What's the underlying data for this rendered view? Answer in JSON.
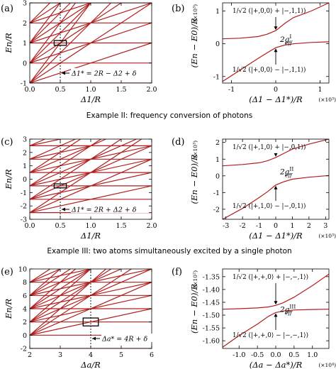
{
  "example_titles": [
    "Example II: frequency conversion of photons",
    "Example III: two atoms simultaneously excited by a single photon"
  ],
  "chart_data": [
    {
      "panel": "(a)",
      "type": "line",
      "xlabel": "Δ1/R",
      "ylabel": "En/R",
      "xlim": [
        0,
        2
      ],
      "ylim": [
        -1,
        3
      ],
      "xticks": [
        "0.0",
        "0.5",
        "1.0",
        "1.5",
        "2.0"
      ],
      "yticks": [
        "-1",
        "0",
        "1",
        "2",
        "3"
      ],
      "annotation": "Δ1* = 2R − Δ2 + δ",
      "marker_x": 0.5,
      "box": {
        "x": [
          0.4,
          0.6
        ],
        "y": [
          0.88,
          1.12
        ]
      },
      "series": [
        {
          "x": [
            0,
            2
          ],
          "y": [
            -1,
            -1
          ]
        },
        {
          "x": [
            0,
            2
          ],
          "y": [
            0,
            0
          ]
        },
        {
          "x": [
            0,
            2
          ],
          "y": [
            1,
            1
          ]
        },
        {
          "x": [
            0,
            2
          ],
          "y": [
            2,
            2
          ]
        },
        {
          "x": [
            0,
            2
          ],
          "y": [
            3,
            3
          ]
        },
        {
          "x": [
            0,
            2
          ],
          "y": [
            -1,
            1
          ]
        },
        {
          "x": [
            0,
            2
          ],
          "y": [
            0,
            2
          ]
        },
        {
          "x": [
            0,
            2
          ],
          "y": [
            1,
            3
          ]
        },
        {
          "x": [
            0,
            1
          ],
          "y": [
            2,
            3
          ]
        },
        {
          "x": [
            0,
            2
          ],
          "y": [
            -1,
            3
          ]
        },
        {
          "x": [
            0,
            1.5
          ],
          "y": [
            0,
            3
          ]
        },
        {
          "x": [
            0,
            1
          ],
          "y": [
            1,
            3
          ]
        },
        {
          "x": [
            0,
            0.5
          ],
          "y": [
            2,
            3
          ]
        },
        {
          "x": [
            0,
            1.333
          ],
          "y": [
            -1,
            3
          ]
        },
        {
          "x": [
            0,
            1
          ],
          "y": [
            0,
            3
          ]
        },
        {
          "x": [
            0,
            0.667
          ],
          "y": [
            1,
            3
          ]
        },
        {
          "x": [
            0,
            0.333
          ],
          "y": [
            2,
            3
          ]
        },
        {
          "x": [
            0,
            1
          ],
          "y": [
            -1,
            3
          ]
        },
        {
          "x": [
            0,
            0.75
          ],
          "y": [
            0,
            3
          ]
        },
        {
          "x": [
            0,
            0.5
          ],
          "y": [
            1,
            3
          ]
        }
      ]
    },
    {
      "panel": "(b)",
      "type": "line",
      "xlabel": "(Δ1 − Δ1*)/R",
      "x_unit": "(×10³)",
      "ylabel": "(En − E0)/R",
      "y_unit": "(×10³)",
      "xlim": [
        -1.2,
        1.2
      ],
      "ylim": [
        -1.2,
        1.25
      ],
      "xticks": [
        "-1",
        "0",
        "1"
      ],
      "yticks": [
        "-1",
        "0",
        "1"
      ],
      "upper_label": "1/√2 (|+,0,0⟩ + |−,1,1⟩)",
      "lower_label": "1/√2 (|+,0,0⟩ − |−,1,1⟩)",
      "gap_label": "2g",
      "gap_sup": "I",
      "gap_sub": "eff",
      "series": [
        {
          "x": [
            -1.2,
            -0.8,
            -0.4,
            -0.2,
            0,
            0.2,
            0.4,
            0.8,
            1.2
          ],
          "y": [
            0.15,
            0.17,
            0.22,
            0.29,
            0.4,
            0.62,
            0.8,
            1.0,
            1.25
          ]
        },
        {
          "x": [
            -1.2,
            -0.8,
            -0.4,
            -0.2,
            0,
            0.2,
            0.4,
            0.8,
            1.2
          ],
          "y": [
            -1.15,
            -0.8,
            -0.45,
            -0.28,
            -0.12,
            -0.04,
            0.0,
            0.04,
            0.06
          ]
        }
      ]
    },
    {
      "panel": "(c)",
      "type": "line",
      "xlabel": "Δ1/R",
      "ylabel": "En/R",
      "xlim": [
        0,
        2
      ],
      "ylim": [
        -3,
        3
      ],
      "xticks": [
        "0.0",
        "0.5",
        "1.0",
        "1.5",
        "2.0"
      ],
      "yticks": [
        "-3",
        "-2",
        "-1",
        "0",
        "1",
        "2",
        "3"
      ],
      "annotation": "Δ1* = 2R + Δ2 + δ",
      "marker_x": 0.5,
      "box": {
        "x": [
          0.4,
          0.6
        ],
        "y": [
          -0.65,
          -0.35
        ]
      },
      "series": [
        {
          "x": [
            0,
            2
          ],
          "y": [
            -2.5,
            -2.5
          ]
        },
        {
          "x": [
            0,
            2
          ],
          "y": [
            -1.5,
            -1.5
          ]
        },
        {
          "x": [
            0,
            2
          ],
          "y": [
            -0.5,
            -0.5
          ]
        },
        {
          "x": [
            0,
            2
          ],
          "y": [
            0.5,
            0.5
          ]
        },
        {
          "x": [
            0,
            2
          ],
          "y": [
            1.5,
            1.5
          ]
        },
        {
          "x": [
            0,
            2
          ],
          "y": [
            2.5,
            2.5
          ]
        },
        {
          "x": [
            0,
            2
          ],
          "y": [
            -2.5,
            -0.5
          ]
        },
        {
          "x": [
            0,
            2
          ],
          "y": [
            -1.5,
            0.5
          ]
        },
        {
          "x": [
            0,
            2
          ],
          "y": [
            -0.5,
            1.5
          ]
        },
        {
          "x": [
            0,
            2
          ],
          "y": [
            0.5,
            2.5
          ]
        },
        {
          "x": [
            0,
            1
          ],
          "y": [
            1.5,
            2.5
          ]
        },
        {
          "x": [
            0,
            0.5
          ],
          "y": [
            2.5,
            3
          ]
        },
        {
          "x": [
            0,
            2
          ],
          "y": [
            -2.5,
            1.5
          ]
        },
        {
          "x": [
            0,
            2
          ],
          "y": [
            -1.5,
            2.5
          ]
        },
        {
          "x": [
            0,
            1.75
          ],
          "y": [
            -0.5,
            3
          ]
        },
        {
          "x": [
            0,
            1.25
          ],
          "y": [
            0.5,
            3
          ]
        },
        {
          "x": [
            0,
            0.75
          ],
          "y": [
            1.5,
            3
          ]
        },
        {
          "x": [
            0,
            0.25
          ],
          "y": [
            2.5,
            3
          ]
        },
        {
          "x": [
            0,
            1.833
          ],
          "y": [
            -2.5,
            3
          ]
        },
        {
          "x": [
            0,
            1.5
          ],
          "y": [
            -1.5,
            3
          ]
        },
        {
          "x": [
            0,
            1.167
          ],
          "y": [
            -0.5,
            3
          ]
        },
        {
          "x": [
            0,
            0.833
          ],
          "y": [
            0.5,
            3
          ]
        }
      ]
    },
    {
      "panel": "(d)",
      "type": "line",
      "xlabel": "(Δ1 − Δ1*)/R",
      "x_unit": "(×10³)",
      "ylabel": "(En − E0)/R",
      "y_unit": "(×10³)",
      "xlim": [
        -3.2,
        3.2
      ],
      "ylim": [
        -2.6,
        2.2
      ],
      "xticks": [
        "-3",
        "-2",
        "-1",
        "0",
        "1",
        "2",
        "3"
      ],
      "yticks": [
        "-2",
        "-1",
        "0",
        "1",
        "2"
      ],
      "upper_label": "1/√2 (|+,1,0⟩ + |−,0,1⟩)",
      "lower_label": "1/√2 (|+,1,0⟩ − |−,0,1⟩)",
      "gap_label": "2g",
      "gap_sup": "II",
      "gap_sub": "eff",
      "series": [
        {
          "x": [
            -3.2,
            -2,
            -1,
            -0.5,
            0,
            0.5,
            1,
            2,
            3.2
          ],
          "y": [
            0.6,
            0.68,
            0.78,
            0.9,
            1.1,
            1.35,
            1.6,
            1.9,
            2.2
          ]
        },
        {
          "x": [
            -3.2,
            -2,
            -1,
            -0.5,
            0,
            0.5,
            1,
            2,
            3.2
          ],
          "y": [
            -2.6,
            -1.95,
            -1.3,
            -0.95,
            -0.55,
            -0.35,
            -0.2,
            -0.08,
            0.02
          ]
        }
      ]
    },
    {
      "panel": "(e)",
      "type": "line",
      "xlabel": "Δa/R",
      "ylabel": "En/R",
      "xlim": [
        2,
        6
      ],
      "ylim": [
        -2,
        10
      ],
      "xticks": [
        "2",
        "3",
        "4",
        "5",
        "6"
      ],
      "yticks": [
        "-2",
        "0",
        "2",
        "4",
        "6",
        "8",
        "10"
      ],
      "annotation": "Δa* = 4R + δ",
      "marker_x": 4,
      "box": {
        "x": [
          3.75,
          4.25
        ],
        "y": [
          1.4,
          2.6
        ]
      },
      "series": [
        {
          "x": [
            2,
            6
          ],
          "y": [
            -2,
            -2
          ]
        },
        {
          "x": [
            2,
            6
          ],
          "y": [
            0,
            0
          ]
        },
        {
          "x": [
            2,
            6
          ],
          "y": [
            2,
            2
          ]
        },
        {
          "x": [
            2,
            6
          ],
          "y": [
            4,
            4
          ]
        },
        {
          "x": [
            2,
            6
          ],
          "y": [
            6,
            6
          ]
        },
        {
          "x": [
            2,
            6
          ],
          "y": [
            8,
            8
          ]
        },
        {
          "x": [
            2,
            6
          ],
          "y": [
            0,
            4
          ]
        },
        {
          "x": [
            2,
            6
          ],
          "y": [
            2,
            6
          ]
        },
        {
          "x": [
            2,
            6
          ],
          "y": [
            4,
            8
          ]
        },
        {
          "x": [
            2,
            6
          ],
          "y": [
            6,
            10
          ]
        },
        {
          "x": [
            2,
            4
          ],
          "y": [
            8,
            10
          ]
        },
        {
          "x": [
            2,
            6
          ],
          "y": [
            0,
            8
          ]
        },
        {
          "x": [
            2,
            6
          ],
          "y": [
            2,
            10
          ]
        },
        {
          "x": [
            2,
            5
          ],
          "y": [
            4,
            10
          ]
        },
        {
          "x": [
            2,
            4
          ],
          "y": [
            6,
            10
          ]
        },
        {
          "x": [
            2,
            3
          ],
          "y": [
            8,
            10
          ]
        },
        {
          "x": [
            2,
            5.333
          ],
          "y": [
            0,
            10
          ]
        },
        {
          "x": [
            2,
            4.667
          ],
          "y": [
            2,
            10
          ]
        },
        {
          "x": [
            2,
            4
          ],
          "y": [
            4,
            10
          ]
        },
        {
          "x": [
            2,
            3.333
          ],
          "y": [
            6,
            10
          ]
        },
        {
          "x": [
            2,
            2.667
          ],
          "y": [
            8,
            10
          ]
        },
        {
          "x": [
            2,
            4.5
          ],
          "y": [
            0,
            10
          ]
        },
        {
          "x": [
            2,
            4
          ],
          "y": [
            2,
            10
          ]
        },
        {
          "x": [
            2,
            3.5
          ],
          "y": [
            4,
            10
          ]
        },
        {
          "x": [
            2,
            3
          ],
          "y": [
            6,
            10
          ]
        }
      ]
    },
    {
      "panel": "(f)",
      "type": "line",
      "xlabel": "(Δa − Δa*)/R",
      "x_unit": "(×10⁴)",
      "ylabel": "(En − E0)/R",
      "y_unit": "(×10²)",
      "xlim": [
        -1.45,
        1.45
      ],
      "ylim": [
        -1.63,
        -1.32
      ],
      "xticks": [
        "-1.0",
        "-0.5",
        "0.0",
        "0.5",
        "1.0"
      ],
      "yticks": [
        "-1.35",
        "-1.40",
        "-1.45",
        "-1.50",
        "-1.55",
        "-1.60"
      ],
      "upper_label": "1/√2 (|+,+,0⟩ + |−,−,1⟩)",
      "lower_label": "1/√2 (|+,+,0⟩ − |−,−,1⟩)",
      "gap_label": "2g",
      "gap_sup": "III",
      "gap_sub": "eff",
      "series": [
        {
          "x": [
            -1.45,
            -1.0,
            -0.5,
            -0.2,
            0,
            0.2,
            0.5,
            1.0,
            1.45
          ],
          "y": [
            -1.477,
            -1.475,
            -1.472,
            -1.468,
            -1.462,
            -1.452,
            -1.43,
            -1.385,
            -1.34
          ]
        },
        {
          "x": [
            -1.45,
            -1.0,
            -0.5,
            -0.2,
            0,
            0.2,
            0.5,
            1.0,
            1.45
          ],
          "y": [
            -1.625,
            -1.58,
            -1.535,
            -1.505,
            -1.49,
            -1.484,
            -1.48,
            -1.478,
            -1.477
          ]
        }
      ]
    }
  ]
}
